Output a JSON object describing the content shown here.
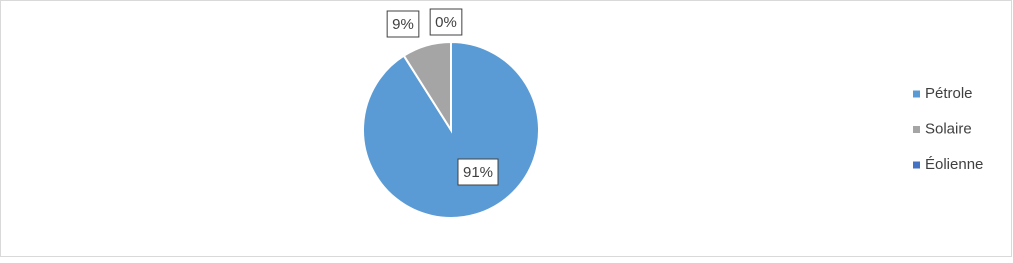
{
  "chart_data": {
    "type": "pie",
    "categories": [
      "Pétrole",
      "Solaire",
      "Éolienne"
    ],
    "values": [
      91,
      9,
      0
    ],
    "value_labels": [
      "91%",
      "9%",
      "0%"
    ],
    "colors": [
      "#5b9bd5",
      "#a5a5a5",
      "#4472c4"
    ],
    "legend": "right"
  }
}
